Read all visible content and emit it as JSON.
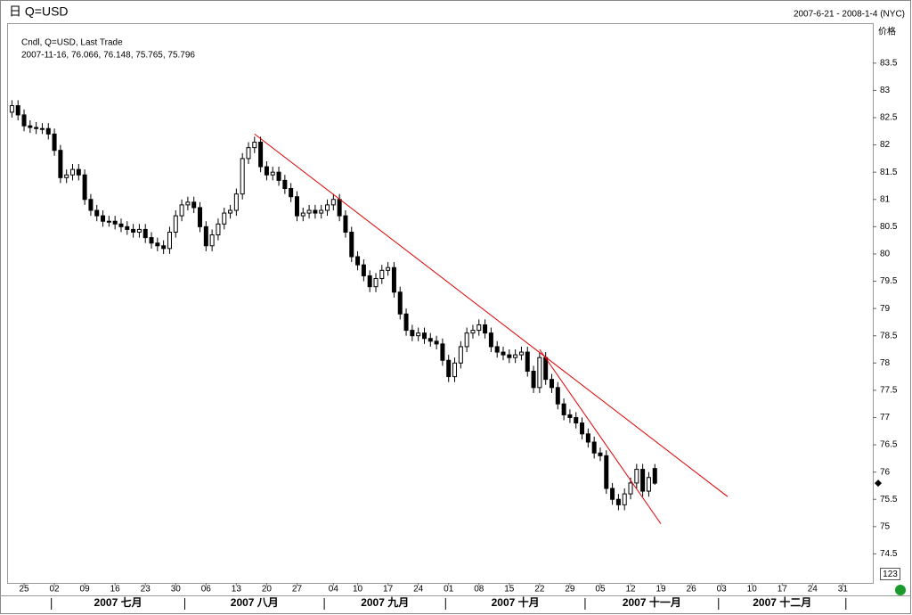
{
  "header": {
    "title": "日 Q=USD",
    "range": "2007-6-21 - 2008-1-4 (NYC)"
  },
  "chart_data": {
    "type": "candlestick",
    "legend": "Cndl, Q=USD, Last Trade",
    "info_line": "2007-11-16, 76.066, 76.148, 75.765, 75.796",
    "y_label": "价格",
    "corner_label": "123",
    "up_color": "#ffffff",
    "down_color": "#000000",
    "xlim": [
      "2007-06-21",
      "2008-01-04"
    ],
    "ylim": [
      74.0,
      84.2
    ],
    "yticks": [
      74.5,
      75,
      75.5,
      76,
      76.5,
      77,
      77.5,
      78,
      78.5,
      79,
      79.5,
      80,
      80.5,
      81,
      81.5,
      82,
      82.5,
      83,
      83.5
    ],
    "xticks": [
      {
        "value": "2007-06-25",
        "label": "25"
      },
      {
        "value": "2007-07-02",
        "label": "02"
      },
      {
        "value": "2007-07-09",
        "label": "09"
      },
      {
        "value": "2007-07-16",
        "label": "16"
      },
      {
        "value": "2007-07-23",
        "label": "23"
      },
      {
        "value": "2007-07-30",
        "label": "30"
      },
      {
        "value": "2007-08-06",
        "label": "06"
      },
      {
        "value": "2007-08-13",
        "label": "13"
      },
      {
        "value": "2007-08-20",
        "label": "20"
      },
      {
        "value": "2007-08-27",
        "label": "27"
      },
      {
        "value": "2007-09-04",
        "label": "04"
      },
      {
        "value": "2007-09-10",
        "label": "10"
      },
      {
        "value": "2007-09-17",
        "label": "17"
      },
      {
        "value": "2007-09-24",
        "label": "24"
      },
      {
        "value": "2007-10-01",
        "label": "01"
      },
      {
        "value": "2007-10-08",
        "label": "08"
      },
      {
        "value": "2007-10-15",
        "label": "15"
      },
      {
        "value": "2007-10-22",
        "label": "22"
      },
      {
        "value": "2007-10-29",
        "label": "29"
      },
      {
        "value": "2007-11-05",
        "label": "05"
      },
      {
        "value": "2007-11-12",
        "label": "12"
      },
      {
        "value": "2007-11-19",
        "label": "19"
      },
      {
        "value": "2007-11-26",
        "label": "26"
      },
      {
        "value": "2007-12-03",
        "label": "03"
      },
      {
        "value": "2007-12-10",
        "label": "10"
      },
      {
        "value": "2007-12-17",
        "label": "17"
      },
      {
        "value": "2007-12-24",
        "label": "24"
      },
      {
        "value": "2007-12-31",
        "label": "31"
      }
    ],
    "month_breaks": [
      "2007-07-01",
      "2007-08-01",
      "2007-09-01",
      "2007-10-01",
      "2007-11-01",
      "2007-12-01",
      "2008-01-01"
    ],
    "month_labels": [
      "2007 七月",
      "2007 八月",
      "2007 九月",
      "2007 十月",
      "2007 十一月",
      "2007 十二月"
    ],
    "trendlines": [
      {
        "color": "#e00000",
        "x": [
          "2007-08-16",
          "2007-12-04"
        ],
        "y": [
          82.2,
          75.55
        ]
      },
      {
        "color": "#e00000",
        "x": [
          "2007-10-22",
          "2007-11-19"
        ],
        "y": [
          78.25,
          75.05
        ]
      }
    ],
    "open": [
      82.6,
      82.72,
      82.55,
      82.35,
      82.32,
      82.3,
      82.3,
      82.2,
      81.9,
      81.4,
      81.45,
      81.55,
      81.45,
      81.0,
      80.8,
      80.7,
      80.6,
      80.6,
      80.55,
      80.5,
      80.45,
      80.4,
      80.45,
      80.3,
      80.2,
      80.15,
      80.1,
      80.4,
      80.7,
      80.9,
      80.95,
      80.85,
      80.5,
      80.15,
      80.35,
      80.55,
      80.75,
      80.8,
      81.1,
      81.75,
      81.95,
      82.05,
      81.6,
      81.45,
      81.5,
      81.35,
      81.2,
      81.05,
      80.7,
      80.75,
      80.8,
      80.75,
      80.8,
      80.9,
      81.0,
      80.7,
      80.4,
      79.95,
      79.8,
      79.6,
      79.4,
      79.55,
      79.7,
      79.75,
      79.3,
      78.9,
      78.6,
      78.5,
      78.55,
      78.45,
      78.4,
      78.35,
      78.05,
      77.75,
      78.0,
      78.3,
      78.55,
      78.6,
      78.7,
      78.55,
      78.3,
      78.2,
      78.15,
      78.1,
      78.15,
      78.2,
      77.85,
      77.55,
      78.1,
      77.7,
      77.55,
      77.25,
      77.05,
      77.0,
      76.9,
      76.7,
      76.55,
      76.35,
      76.3,
      75.7,
      75.5,
      75.4,
      75.6,
      75.8,
      76.05,
      75.65,
      76.066
    ],
    "high": [
      82.82,
      82.82,
      82.65,
      82.45,
      82.42,
      82.4,
      82.4,
      82.3,
      82.0,
      81.55,
      81.65,
      81.65,
      81.55,
      81.1,
      80.9,
      80.8,
      80.7,
      80.7,
      80.65,
      80.6,
      80.55,
      80.55,
      80.55,
      80.4,
      80.3,
      80.25,
      80.5,
      80.8,
      81.0,
      81.05,
      81.05,
      80.95,
      80.6,
      80.45,
      80.65,
      80.85,
      80.9,
      81.2,
      81.85,
      82.05,
      82.15,
      82.15,
      81.7,
      81.6,
      81.6,
      81.45,
      81.3,
      81.15,
      80.85,
      80.9,
      80.9,
      80.9,
      81.0,
      81.1,
      81.1,
      80.8,
      80.5,
      80.05,
      79.9,
      79.7,
      79.65,
      79.8,
      79.85,
      79.85,
      79.4,
      79.0,
      78.7,
      78.65,
      78.65,
      78.55,
      78.5,
      78.45,
      78.15,
      78.1,
      78.4,
      78.65,
      78.7,
      78.8,
      78.8,
      78.65,
      78.4,
      78.3,
      78.25,
      78.25,
      78.3,
      78.3,
      77.95,
      78.2,
      78.2,
      77.8,
      77.65,
      77.35,
      77.15,
      77.1,
      77.0,
      76.8,
      76.65,
      76.45,
      76.4,
      75.8,
      75.6,
      75.7,
      75.9,
      76.15,
      76.15,
      76.0,
      76.148
    ],
    "low": [
      82.5,
      82.45,
      82.25,
      82.22,
      82.2,
      82.2,
      82.1,
      81.8,
      81.3,
      81.3,
      81.35,
      81.35,
      80.9,
      80.7,
      80.6,
      80.5,
      80.5,
      80.45,
      80.4,
      80.35,
      80.3,
      80.3,
      80.2,
      80.1,
      80.05,
      80.0,
      80.0,
      80.3,
      80.6,
      80.8,
      80.75,
      80.4,
      80.05,
      80.05,
      80.25,
      80.45,
      80.65,
      80.7,
      81.0,
      81.65,
      81.85,
      81.5,
      81.35,
      81.35,
      81.25,
      81.1,
      80.95,
      80.6,
      80.6,
      80.65,
      80.65,
      80.65,
      80.7,
      80.8,
      80.6,
      80.3,
      79.85,
      79.7,
      79.5,
      79.3,
      79.3,
      79.45,
      79.6,
      79.2,
      78.8,
      78.5,
      78.4,
      78.4,
      78.35,
      78.3,
      78.25,
      77.95,
      77.65,
      77.65,
      77.9,
      78.2,
      78.45,
      78.5,
      78.45,
      78.2,
      78.1,
      78.05,
      78.0,
      78.0,
      78.05,
      77.75,
      77.45,
      77.45,
      77.6,
      77.45,
      77.15,
      76.95,
      76.9,
      76.8,
      76.6,
      76.45,
      76.25,
      76.2,
      75.6,
      75.4,
      75.3,
      75.3,
      75.5,
      75.7,
      75.55,
      75.55,
      75.765
    ],
    "close": [
      82.72,
      82.55,
      82.35,
      82.32,
      82.3,
      82.3,
      82.2,
      81.9,
      81.4,
      81.45,
      81.55,
      81.45,
      81.0,
      80.8,
      80.7,
      80.6,
      80.6,
      80.55,
      80.5,
      80.45,
      80.4,
      80.45,
      80.3,
      80.2,
      80.15,
      80.1,
      80.4,
      80.7,
      80.9,
      80.95,
      80.85,
      80.5,
      80.15,
      80.35,
      80.55,
      80.75,
      80.8,
      81.1,
      81.75,
      81.95,
      82.05,
      81.6,
      81.45,
      81.5,
      81.35,
      81.2,
      81.05,
      80.7,
      80.75,
      80.8,
      80.75,
      80.8,
      80.9,
      81.0,
      80.7,
      80.4,
      79.95,
      79.8,
      79.6,
      79.4,
      79.55,
      79.7,
      79.75,
      79.3,
      78.9,
      78.6,
      78.5,
      78.55,
      78.45,
      78.4,
      78.35,
      78.05,
      77.75,
      78.0,
      78.3,
      78.55,
      78.6,
      78.7,
      78.55,
      78.3,
      78.2,
      78.15,
      78.1,
      78.15,
      78.2,
      77.85,
      77.55,
      78.1,
      77.7,
      77.55,
      77.25,
      77.05,
      77.0,
      76.9,
      76.7,
      76.55,
      76.35,
      76.3,
      75.7,
      75.5,
      75.4,
      75.6,
      75.8,
      76.05,
      75.65,
      75.9,
      75.796
    ]
  }
}
